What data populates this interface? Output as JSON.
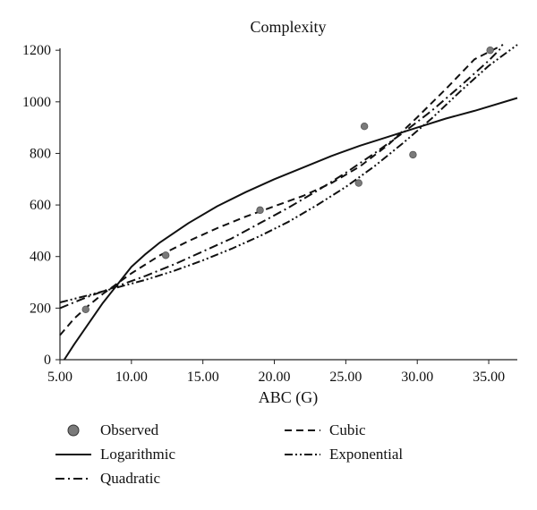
{
  "chart_data": {
    "type": "scatter",
    "title": "Complexity",
    "xlabel": "ABC (G)",
    "ylabel": "",
    "xlim": [
      5.0,
      37.0
    ],
    "ylim": [
      0,
      1270
    ],
    "x_ticks": [
      5.0,
      10.0,
      15.0,
      20.0,
      25.0,
      30.0,
      35.0
    ],
    "x_tick_labels": [
      "5.00",
      "10.00",
      "15.00",
      "20.00",
      "25.00",
      "30.00",
      "35.00"
    ],
    "y_ticks": [
      0,
      200,
      400,
      600,
      800,
      1000,
      1200
    ],
    "y_tick_labels": [
      "0",
      "200",
      "400",
      "600",
      "800",
      "1000",
      "1200"
    ],
    "grid": false,
    "legend_position": "bottom",
    "series": [
      {
        "name": "Observed",
        "kind": "points",
        "color": "#7a7a7a",
        "points": [
          [
            6.8,
            195
          ],
          [
            12.4,
            405
          ],
          [
            19.0,
            580
          ],
          [
            25.9,
            685
          ],
          [
            26.3,
            905
          ],
          [
            29.7,
            795
          ],
          [
            35.1,
            1200
          ]
        ]
      },
      {
        "name": "Logarithmic",
        "kind": "curve",
        "style": "solid",
        "points": [
          [
            5.3,
            0
          ],
          [
            6.0,
            60
          ],
          [
            7.0,
            140
          ],
          [
            8.0,
            220
          ],
          [
            9.0,
            290
          ],
          [
            10.0,
            360
          ],
          [
            11.0,
            410
          ],
          [
            12.0,
            455
          ],
          [
            14.0,
            530
          ],
          [
            16.0,
            595
          ],
          [
            18.0,
            650
          ],
          [
            20.0,
            700
          ],
          [
            22.0,
            745
          ],
          [
            24.0,
            790
          ],
          [
            26.0,
            830
          ],
          [
            28.0,
            865
          ],
          [
            30.0,
            900
          ],
          [
            32.0,
            935
          ],
          [
            34.0,
            965
          ],
          [
            37.0,
            1015
          ]
        ]
      },
      {
        "name": "Cubic",
        "kind": "curve",
        "style": "dashed",
        "points": [
          [
            5.0,
            95
          ],
          [
            6.0,
            160
          ],
          [
            7.0,
            210
          ],
          [
            8.0,
            255
          ],
          [
            10.0,
            335
          ],
          [
            12.0,
            405
          ],
          [
            14.0,
            460
          ],
          [
            16.0,
            510
          ],
          [
            18.0,
            555
          ],
          [
            20.0,
            595
          ],
          [
            22.0,
            635
          ],
          [
            24.0,
            685
          ],
          [
            26.0,
            750
          ],
          [
            28.0,
            835
          ],
          [
            30.0,
            940
          ],
          [
            32.0,
            1050
          ],
          [
            34.0,
            1165
          ],
          [
            36.0,
            1270
          ]
        ]
      },
      {
        "name": "Quadratic",
        "kind": "curve",
        "style": "dashdot",
        "points": [
          [
            5.0,
            200
          ],
          [
            7.0,
            245
          ],
          [
            9.0,
            285
          ],
          [
            11.0,
            325
          ],
          [
            13.0,
            370
          ],
          [
            15.0,
            420
          ],
          [
            17.0,
            470
          ],
          [
            19.0,
            530
          ],
          [
            21.0,
            590
          ],
          [
            23.0,
            655
          ],
          [
            25.0,
            725
          ],
          [
            27.0,
            800
          ],
          [
            29.0,
            880
          ],
          [
            31.0,
            965
          ],
          [
            33.0,
            1060
          ],
          [
            35.0,
            1160
          ],
          [
            35.8,
            1205
          ]
        ]
      },
      {
        "name": "Exponential",
        "kind": "curve",
        "style": "dashdotdot",
        "points": [
          [
            5.0,
            222
          ],
          [
            7.0,
            250
          ],
          [
            9.0,
            280
          ],
          [
            11.0,
            310
          ],
          [
            13.0,
            345
          ],
          [
            15.0,
            385
          ],
          [
            17.0,
            430
          ],
          [
            19.0,
            480
          ],
          [
            21.0,
            535
          ],
          [
            23.0,
            600
          ],
          [
            25.0,
            670
          ],
          [
            27.0,
            750
          ],
          [
            29.0,
            840
          ],
          [
            31.0,
            935
          ],
          [
            33.0,
            1040
          ],
          [
            35.0,
            1140
          ],
          [
            37.0,
            1235
          ]
        ]
      }
    ]
  },
  "legend": {
    "items": [
      {
        "label": "Observed",
        "kind": "marker",
        "style": "circle"
      },
      {
        "label": "Cubic",
        "kind": "line",
        "style": "dashed"
      },
      {
        "label": "Logarithmic",
        "kind": "line",
        "style": "solid"
      },
      {
        "label": "Exponential",
        "kind": "line",
        "style": "dashdotdot"
      },
      {
        "label": "Quadratic",
        "kind": "line",
        "style": "dashdot"
      }
    ]
  }
}
